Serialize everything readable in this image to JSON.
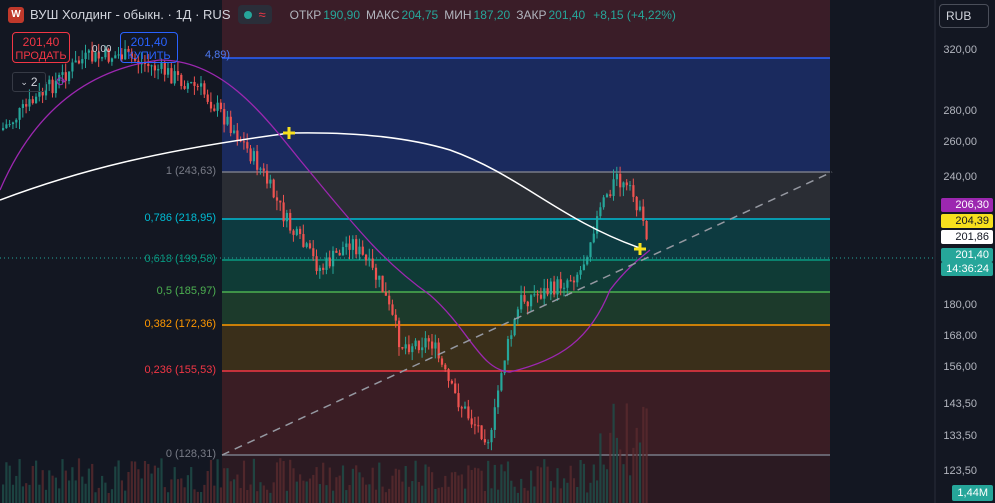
{
  "header": {
    "logo": "W",
    "title": "ВУШ Холдинг - обыкн. · 1Д · RUS",
    "status_icon": "wave-icon",
    "ohlc": [
      {
        "k": "ОТКР",
        "v": "190,90"
      },
      {
        "k": "МАКС",
        "v": "204,75"
      },
      {
        "k": "МИН",
        "v": "187,20"
      },
      {
        "k": "ЗАКР",
        "v": "201,40"
      },
      {
        "k": "",
        "v": "+8,15 (+4,22%)"
      }
    ]
  },
  "trade": {
    "sell_price": "201,40",
    "sell_label": "ПРОДАТЬ",
    "buy_price": "201,40",
    "buy_label": "КУПИТЬ",
    "spread": "0,00"
  },
  "layers_count": "2",
  "currency": "RUB",
  "top_fib_label": "4,89)",
  "fib_levels": [
    {
      "label": "1 (243,63)",
      "price": 243.63,
      "color": "#787b86"
    },
    {
      "label": "0,786 (218,95)",
      "price": 218.95,
      "color": "#00bcd4"
    },
    {
      "label": "0,618 (199,58)",
      "price": 199.58,
      "color": "#089981"
    },
    {
      "label": "0,5 (185,97)",
      "price": 185.97,
      "color": "#4caf50"
    },
    {
      "label": "0,382 (172,36)",
      "price": 172.36,
      "color": "#ff9800"
    },
    {
      "label": "0,236 (155,53)",
      "price": 155.53,
      "color": "#f23645"
    },
    {
      "label": "0 (128,31)",
      "price": 128.31,
      "color": "#787b86"
    }
  ],
  "price_axis": [
    "320,00",
    "280,00",
    "260,00",
    "240,00",
    "180,00",
    "168,00",
    "156,00",
    "143,50",
    "133,50",
    "123,50"
  ],
  "price_tags": [
    {
      "text": "206,30",
      "bg": "#9c27b0",
      "fg": "#ffffff"
    },
    {
      "text": "204,39",
      "bg": "#f7e01d",
      "fg": "#131722"
    },
    {
      "text": "201,86",
      "bg": "#ffffff",
      "fg": "#131722"
    },
    {
      "text": "201,40",
      "bg": "#26a69a",
      "fg": "#ffffff"
    },
    {
      "text": "14:36:24",
      "bg": "#26a69a",
      "fg": "#ffffff"
    }
  ],
  "volume_tag": "1,44M"
}
